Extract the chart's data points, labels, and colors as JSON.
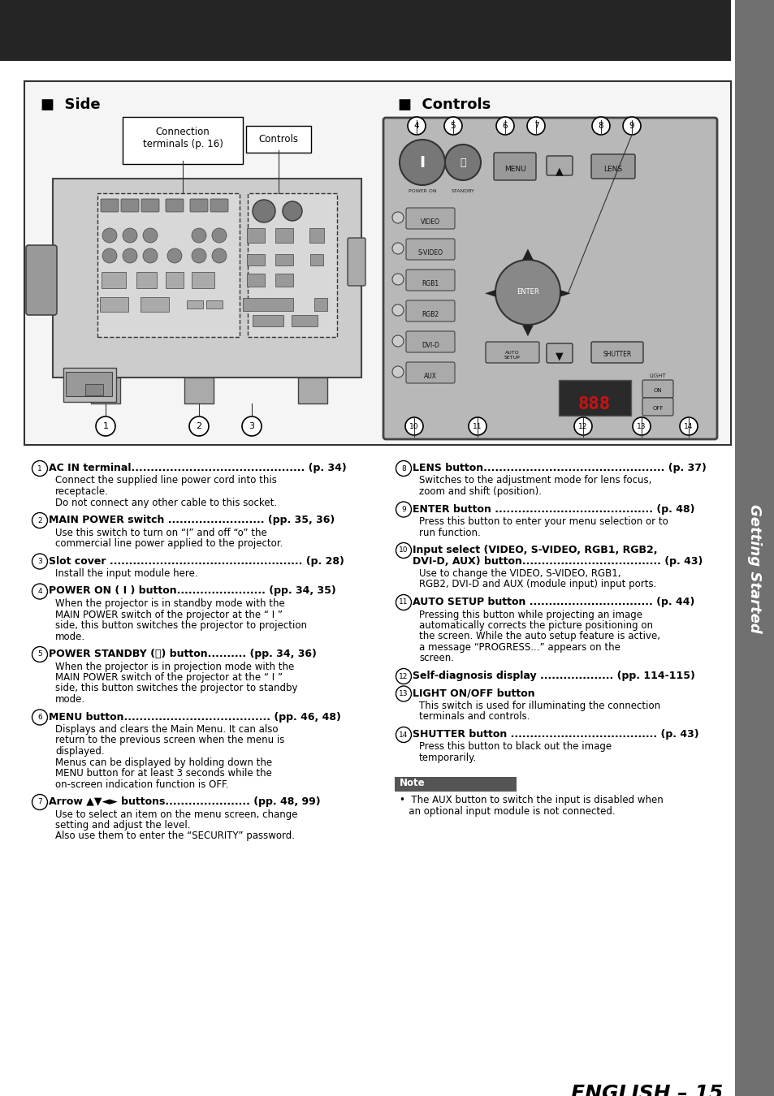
{
  "page_bg": "#ffffff",
  "header_bg": "#252525",
  "sidebar_bg": "#707070",
  "sidebar_text": "Getting Started",
  "sidebar_text_color": "#ffffff",
  "title": "ENGLISH – 15",
  "section_side_title": "■  Side",
  "section_controls_title": "■  Controls",
  "note_bg": "#555555",
  "note_text_color": "#ffffff",
  "note_label": "Note",
  "note_content": "•  The AUX button to switch the input is disabled when\n   an optional input module is not connected.",
  "items": [
    {
      "num": "1",
      "bold": "AC IN terminal............................................. (p. 34)",
      "body": "Connect the supplied line power cord into this\nreceptacle.\nDo not connect any other cable to this socket."
    },
    {
      "num": "2",
      "bold": "MAIN POWER switch ......................... (pp. 35, 36)",
      "body": "Use this switch to turn on “I” and off “o” the\ncommercial line power applied to the projector."
    },
    {
      "num": "3",
      "bold": "Slot cover .................................................. (p. 28)",
      "body": "Install the input module here."
    },
    {
      "num": "4",
      "bold": "POWER ON ( I ) button....................... (pp. 34, 35)",
      "body": "When the projector is in standby mode with the\nMAIN POWER switch of the projector at the “ I ”\nside, this button switches the projector to projection\nmode."
    },
    {
      "num": "5",
      "bold": "POWER STANDBY (⏻) button.......... (pp. 34, 36)",
      "body": "When the projector is in projection mode with the\nMAIN POWER switch of the projector at the “ I ”\nside, this button switches the projector to standby\nmode."
    },
    {
      "num": "6",
      "bold": "MENU button...................................... (pp. 46, 48)",
      "body": "Displays and clears the Main Menu. It can also\nreturn to the previous screen when the menu is\ndisplayed.\nMenus can be displayed by holding down the\nMENU button for at least 3 seconds while the\non-screen indication function is OFF."
    },
    {
      "num": "7",
      "bold": "Arrow ▲▼◄► buttons...................... (pp. 48, 99)",
      "body": "Use to select an item on the menu screen, change\nsetting and adjust the level.\nAlso use them to enter the “SECURITY” password."
    },
    {
      "num": "8",
      "bold": "LENS button............................................... (p. 37)",
      "body": "Switches to the adjustment mode for lens focus,\nzoom and shift (position)."
    },
    {
      "num": "9",
      "bold": "ENTER button ......................................... (p. 48)",
      "body": "Press this button to enter your menu selection or to\nrun function."
    },
    {
      "num": "10",
      "bold": "Input select (VIDEO, S-VIDEO, RGB1, RGB2,\nDVI-D, AUX) button.................................... (p. 43)",
      "body": "Use to change the VIDEO, S-VIDEO, RGB1,\nRGB2, DVI-D and AUX (module input) input ports."
    },
    {
      "num": "11",
      "bold": "AUTO SETUP button ................................ (p. 44)",
      "body": "Pressing this button while projecting an image\nautomatically corrects the picture positioning on\nthe screen. While the auto setup feature is active,\na message “PROGRESS...” appears on the\nscreen."
    },
    {
      "num": "12",
      "bold": "Self-diagnosis display ................... (pp. 114-115)"
    },
    {
      "num": "13",
      "bold": "LIGHT ON/OFF button",
      "body": "This switch is used for illuminating the connection\nterminals and controls."
    },
    {
      "num": "14",
      "bold": "SHUTTER button ...................................... (p. 43)",
      "body": "Press this button to black out the image\ntemporarily."
    }
  ]
}
